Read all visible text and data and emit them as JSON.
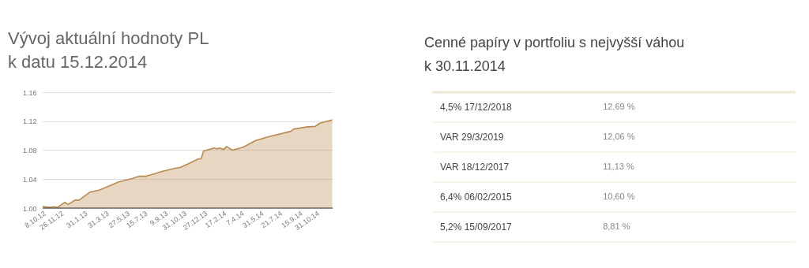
{
  "chart_data": [
    {
      "type": "area",
      "title": "Vývoj aktuální hodnoty PL\nk datu 15.12.2014",
      "x": [
        "2012-10-08",
        "2012-10-28",
        "2012-11-07",
        "2012-11-18",
        "2012-12-08",
        "2012-12-17",
        "2013-01-05",
        "2013-01-16",
        "2013-02-15",
        "2013-03-14",
        "2013-04-16",
        "2013-05-04",
        "2013-06-13",
        "2013-07-01",
        "2013-07-19",
        "2013-08-10",
        "2013-08-28",
        "2013-10-07",
        "2013-10-21",
        "2013-11-12",
        "2013-12-11",
        "2013-12-18",
        "2013-12-25",
        "2014-01-23",
        "2014-01-31",
        "2014-02-07",
        "2014-02-18",
        "2014-02-26",
        "2014-03-14",
        "2014-04-13",
        "2014-05-05",
        "2014-05-16",
        "2014-06-25",
        "2014-08-22",
        "2014-08-29",
        "2014-10-04",
        "2014-10-29",
        "2014-11-09",
        "2014-12-14"
      ],
      "series": [
        {
          "color": "#b98a4e",
          "values": [
            1.002,
            1.001,
            1.002,
            1.001,
            1.008,
            1.005,
            1.011,
            1.011,
            1.022,
            1.025,
            1.032,
            1.036,
            1.041,
            1.044,
            1.044,
            1.047,
            1.05,
            1.055,
            1.056,
            1.061,
            1.068,
            1.068,
            1.079,
            1.083,
            1.082,
            1.083,
            1.081,
            1.085,
            1.08,
            1.084,
            1.09,
            1.093,
            1.099,
            1.106,
            1.109,
            1.112,
            1.113,
            1.117,
            1.122
          ]
        }
      ],
      "xlim": [
        "2012-10-08",
        "2014-12-15"
      ],
      "xticks": [
        {
          "value": "2012-10-08",
          "label": "8.10.12"
        },
        {
          "value": "2012-11-26",
          "label": "26.11.12"
        },
        {
          "value": "2013-01-31",
          "label": "31.1.13"
        },
        {
          "value": "2013-03-31",
          "label": "31.3.13"
        },
        {
          "value": "2013-05-27",
          "label": "27.5.13"
        },
        {
          "value": "2013-07-15",
          "label": "15.7.13"
        },
        {
          "value": "2013-09-09",
          "label": "9.9.13"
        },
        {
          "value": "2013-10-31",
          "label": "31.10.13"
        },
        {
          "value": "2013-12-27",
          "label": "27.12.13"
        },
        {
          "value": "2014-02-17",
          "label": "17.2.14"
        },
        {
          "value": "2014-04-07",
          "label": "7.4.14"
        },
        {
          "value": "2014-05-31",
          "label": "31.5.14"
        },
        {
          "value": "2014-07-21",
          "label": "21.7.14"
        },
        {
          "value": "2014-09-15",
          "label": "15.9.14"
        },
        {
          "value": "2014-10-31",
          "label": "31.10.14"
        }
      ],
      "ylim": [
        1.0,
        1.16
      ],
      "yticks": [
        {
          "value": 1.0,
          "label": "1.00"
        },
        1.04,
        1.08,
        1.12,
        1.16
      ],
      "grid": "y"
    },
    {
      "type": "other",
      "title": "Cenné papíry v portfoliu s nejvyšší váhou\nk 30.11.2014",
      "categories": [
        "4,5% 17/12/2018",
        "VAR 29/3/2019",
        "VAR 18/12/2017",
        "6,4% 06/02/2015",
        "5,2% 15/09/2017"
      ],
      "value_labels": [
        "12,69 %",
        "12,06 %",
        "11,13 %",
        "10,60 %",
        "8,81 %"
      ]
    }
  ]
}
